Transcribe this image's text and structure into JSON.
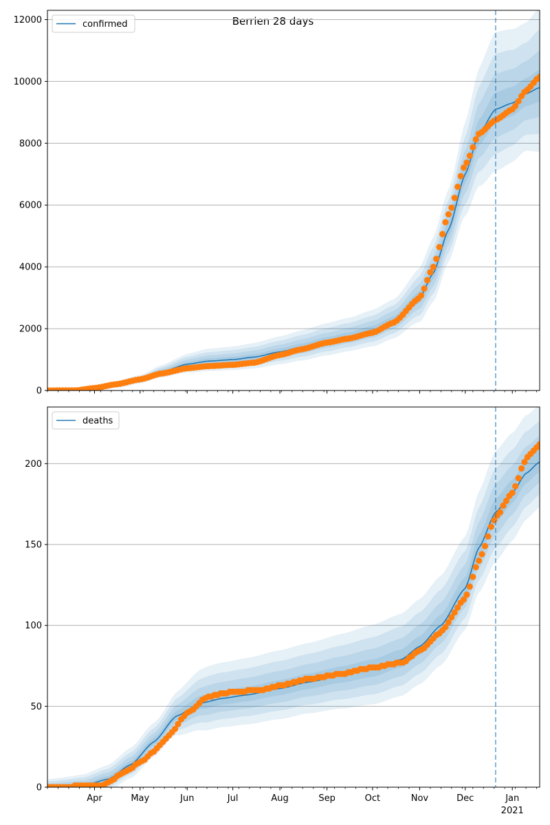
{
  "figure": {
    "title": "Berrien 28 days"
  },
  "colors": {
    "model_line": "#1f77b4",
    "observed_points": "#ff7f0e",
    "band": "#1f77b4",
    "forecast_line": "#1f77b4",
    "grid": "#b0b0b0"
  },
  "x_axis": {
    "start": "2020-03-01",
    "end": "2021-01-19",
    "forecast_start": "2020-12-21",
    "month_ticks": [
      {
        "date": "2020-04-01",
        "label": "Apr"
      },
      {
        "date": "2020-05-01",
        "label": "May"
      },
      {
        "date": "2020-06-01",
        "label": "Jun"
      },
      {
        "date": "2020-07-01",
        "label": "Jul"
      },
      {
        "date": "2020-08-01",
        "label": "Aug"
      },
      {
        "date": "2020-09-01",
        "label": "Sep"
      },
      {
        "date": "2020-10-01",
        "label": "Oct"
      },
      {
        "date": "2020-11-01",
        "label": "Nov"
      },
      {
        "date": "2020-12-01",
        "label": "Dec"
      },
      {
        "date": "2021-01-01",
        "label": "Jan"
      }
    ],
    "year_label": "2021"
  },
  "chart_data": [
    {
      "type": "line",
      "legend": "confirmed",
      "legend_position": "upper left",
      "grid": "horizontal",
      "ylim": [
        0,
        12300
      ],
      "yticks": [
        0,
        2000,
        4000,
        6000,
        8000,
        10000,
        12000
      ],
      "model_knots": [
        [
          "2020-03-01",
          0
        ],
        [
          "2020-03-20",
          10
        ],
        [
          "2020-04-01",
          60
        ],
        [
          "2020-04-15",
          180
        ],
        [
          "2020-05-01",
          350
        ],
        [
          "2020-05-15",
          600
        ],
        [
          "2020-06-01",
          850
        ],
        [
          "2020-06-15",
          950
        ],
        [
          "2020-07-01",
          1000
        ],
        [
          "2020-07-15",
          1080
        ],
        [
          "2020-08-01",
          1250
        ],
        [
          "2020-08-15",
          1400
        ],
        [
          "2020-09-01",
          1600
        ],
        [
          "2020-09-15",
          1750
        ],
        [
          "2020-10-01",
          1950
        ],
        [
          "2020-10-15",
          2250
        ],
        [
          "2020-11-01",
          3000
        ],
        [
          "2020-11-10",
          3800
        ],
        [
          "2020-11-20",
          5200
        ],
        [
          "2020-12-01",
          7000
        ],
        [
          "2020-12-10",
          8300
        ],
        [
          "2020-12-21",
          9100
        ],
        [
          "2021-01-01",
          9300
        ],
        [
          "2021-01-10",
          9600
        ],
        [
          "2021-01-19",
          9800
        ]
      ],
      "observed_knots": [
        [
          "2020-03-01",
          0
        ],
        [
          "2020-03-20",
          5
        ],
        [
          "2020-04-01",
          80
        ],
        [
          "2020-04-15",
          200
        ],
        [
          "2020-05-01",
          360
        ],
        [
          "2020-05-15",
          550
        ],
        [
          "2020-06-01",
          720
        ],
        [
          "2020-06-15",
          790
        ],
        [
          "2020-07-01",
          830
        ],
        [
          "2020-07-15",
          900
        ],
        [
          "2020-08-01",
          1150
        ],
        [
          "2020-08-15",
          1330
        ],
        [
          "2020-09-01",
          1550
        ],
        [
          "2020-09-15",
          1680
        ],
        [
          "2020-10-01",
          1870
        ],
        [
          "2020-10-15",
          2200
        ],
        [
          "2020-11-01",
          3000
        ],
        [
          "2020-11-10",
          4000
        ],
        [
          "2020-11-20",
          5700
        ],
        [
          "2020-12-01",
          7300
        ],
        [
          "2020-12-10",
          8300
        ],
        [
          "2020-12-21",
          8750
        ],
        [
          "2021-01-01",
          9100
        ],
        [
          "2021-01-10",
          9700
        ],
        [
          "2021-01-19",
          10150
        ]
      ],
      "band_outer_width": [
        [
          "2020-03-01",
          20
        ],
        [
          "2020-05-01",
          150
        ],
        [
          "2020-06-15",
          400
        ],
        [
          "2020-09-15",
          600
        ],
        [
          "2020-10-15",
          700
        ],
        [
          "2020-11-20",
          1300
        ],
        [
          "2020-12-21",
          2500
        ],
        [
          "2021-01-10",
          2300
        ],
        [
          "2021-01-19",
          2600
        ]
      ]
    },
    {
      "type": "line",
      "legend": "deaths",
      "legend_position": "upper left",
      "grid": "horizontal",
      "ylim": [
        0,
        235
      ],
      "yticks": [
        0,
        50,
        100,
        150,
        200
      ],
      "model_knots": [
        [
          "2020-03-01",
          0
        ],
        [
          "2020-03-25",
          1
        ],
        [
          "2020-04-10",
          5
        ],
        [
          "2020-04-25",
          14
        ],
        [
          "2020-05-10",
          28
        ],
        [
          "2020-05-25",
          44
        ],
        [
          "2020-06-10",
          52
        ],
        [
          "2020-06-25",
          55
        ],
        [
          "2020-07-10",
          57
        ],
        [
          "2020-08-01",
          61
        ],
        [
          "2020-08-20",
          65
        ],
        [
          "2020-09-10",
          69
        ],
        [
          "2020-10-01",
          73
        ],
        [
          "2020-10-20",
          79
        ],
        [
          "2020-11-01",
          87
        ],
        [
          "2020-11-15",
          100
        ],
        [
          "2020-12-01",
          123
        ],
        [
          "2020-12-10",
          148
        ],
        [
          "2020-12-21",
          170
        ],
        [
          "2021-01-01",
          182
        ],
        [
          "2021-01-10",
          194
        ],
        [
          "2021-01-19",
          201
        ]
      ],
      "observed_knots": [
        [
          "2020-03-01",
          0
        ],
        [
          "2020-04-05",
          1
        ],
        [
          "2020-04-10",
          3
        ],
        [
          "2020-04-20",
          9
        ],
        [
          "2020-05-01",
          15
        ],
        [
          "2020-05-10",
          22
        ],
        [
          "2020-05-20",
          32
        ],
        [
          "2020-06-01",
          46
        ],
        [
          "2020-06-15",
          56
        ],
        [
          "2020-07-01",
          59
        ],
        [
          "2020-07-20",
          60
        ],
        [
          "2020-08-01",
          63
        ],
        [
          "2020-08-20",
          67
        ],
        [
          "2020-09-10",
          70
        ],
        [
          "2020-10-01",
          74
        ],
        [
          "2020-10-20",
          77
        ],
        [
          "2020-11-01",
          84
        ],
        [
          "2020-11-15",
          96
        ],
        [
          "2020-12-01",
          117
        ],
        [
          "2020-12-10",
          140
        ],
        [
          "2020-12-21",
          167
        ],
        [
          "2021-01-01",
          182
        ],
        [
          "2021-01-10",
          203
        ],
        [
          "2021-01-19",
          212
        ]
      ],
      "band_outer_width": [
        [
          "2020-03-01",
          5
        ],
        [
          "2020-05-15",
          12
        ],
        [
          "2020-06-15",
          22
        ],
        [
          "2020-08-15",
          24
        ],
        [
          "2020-10-15",
          28
        ],
        [
          "2020-12-01",
          32
        ],
        [
          "2020-12-21",
          38
        ],
        [
          "2021-01-19",
          35
        ]
      ]
    }
  ]
}
